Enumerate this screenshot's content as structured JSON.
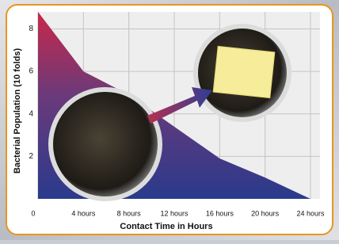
{
  "chart_data": {
    "type": "area",
    "x-label": "Contact Time in Hours",
    "y-label": "Bacterial Population (10 folds)",
    "x": [
      0,
      4,
      8,
      12,
      16,
      20,
      24
    ],
    "values": [
      8.8,
      6,
      4.9,
      3.4,
      1.9,
      1,
      0
    ],
    "xlim": [
      0,
      24
    ],
    "ylim": [
      0,
      8.8
    ],
    "xticks": [
      0,
      {
        "value": 4,
        "label": "4 hours"
      },
      {
        "value": 8,
        "label": "8 hours"
      },
      {
        "value": 12,
        "label": "12 hours"
      },
      {
        "value": 16,
        "label": "16 hours"
      },
      {
        "value": 20,
        "label": "20 hours"
      },
      {
        "value": 24,
        "label": "24 hours"
      }
    ],
    "yticks": [
      2,
      4,
      6,
      8
    ],
    "grid": true
  }
}
